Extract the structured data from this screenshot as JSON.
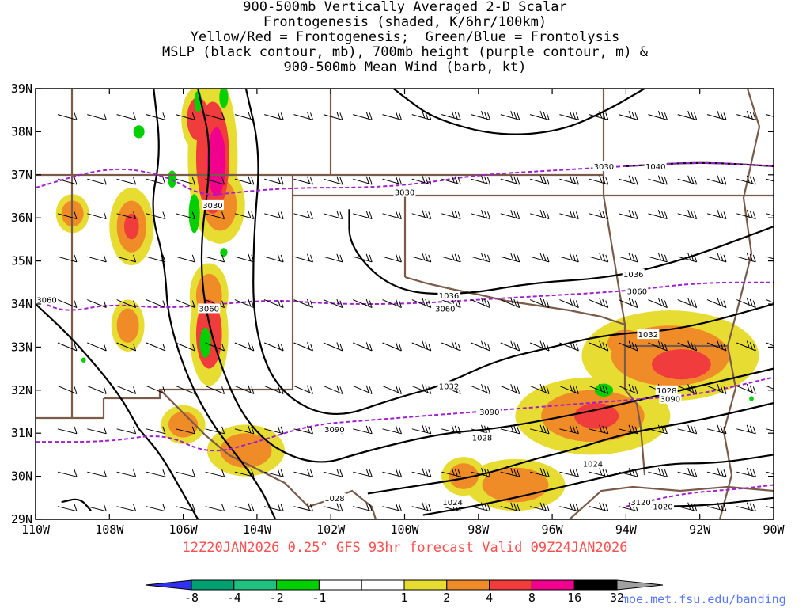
{
  "title_lines": [
    "900-500mb Vertically Averaged 2-D Scalar",
    "Frontogenesis (shaded, K/6hr/100km)",
    "Yellow/Red = Frontogenesis;  Green/Blue = Frontolysis",
    "MSLP (black contour, mb), 700mb height (purple contour, m) &",
    "900-500mb Mean Wind (barb, kt)"
  ],
  "valid_text": "12Z20JAN2026 0.25° GFS 93hr forecast Valid 09Z24JAN2026",
  "credit_text": "moe.met.fsu.edu/banding",
  "chart_data": {
    "type": "heatmap",
    "xlim": [
      -110,
      -90
    ],
    "ylim": [
      29,
      39
    ],
    "x_ticks": [
      {
        "value": -110,
        "label": "110W"
      },
      {
        "value": -108,
        "label": "108W"
      },
      {
        "value": -106,
        "label": "106W"
      },
      {
        "value": -104,
        "label": "104W"
      },
      {
        "value": -102,
        "label": "102W"
      },
      {
        "value": -100,
        "label": "100W"
      },
      {
        "value": -98,
        "label": "98W"
      },
      {
        "value": -96,
        "label": "96W"
      },
      {
        "value": -94,
        "label": "94W"
      },
      {
        "value": -92,
        "label": "92W"
      },
      {
        "value": -90,
        "label": "90W"
      }
    ],
    "y_ticks": [
      {
        "value": 29,
        "label": "29N"
      },
      {
        "value": 30,
        "label": "30N"
      },
      {
        "value": 31,
        "label": "31N"
      },
      {
        "value": 32,
        "label": "32N"
      },
      {
        "value": 33,
        "label": "33N"
      },
      {
        "value": 34,
        "label": "34N"
      },
      {
        "value": 35,
        "label": "35N"
      },
      {
        "value": 36,
        "label": "36N"
      },
      {
        "value": 37,
        "label": "37N"
      },
      {
        "value": 38,
        "label": "38N"
      },
      {
        "value": 39,
        "label": "39N"
      }
    ],
    "colorbar": {
      "colors": [
        "#3030f0",
        "#00a070",
        "#20c080",
        "#00d000",
        "#ffffff",
        "#ffffff",
        "#e6dc32",
        "#f08c28",
        "#f03c3c",
        "#f0008c",
        "#000000",
        "#a0a0a0"
      ],
      "labels": [
        "-8",
        "-4",
        "-2",
        "-1",
        "1",
        "2",
        "4",
        "8",
        "16",
        "32"
      ]
    },
    "fronto_blobs": [
      {
        "lon": -105.2,
        "lat": 37.4,
        "rx": 0.45,
        "ry": 1.3,
        "level": 3
      },
      {
        "lon": -105.1,
        "lat": 37.3,
        "rx": 0.25,
        "ry": 0.8,
        "level": 4
      },
      {
        "lon": -105.6,
        "lat": 38.3,
        "rx": 0.3,
        "ry": 0.5,
        "level": 3
      },
      {
        "lon": -105.0,
        "lat": 36.3,
        "rx": 0.45,
        "ry": 0.6,
        "level": 2
      },
      {
        "lon": -105.3,
        "lat": 33.3,
        "rx": 0.35,
        "ry": 0.8,
        "level": 3
      },
      {
        "lon": -105.3,
        "lat": 34.2,
        "rx": 0.35,
        "ry": 0.5,
        "level": 2
      },
      {
        "lon": -107.4,
        "lat": 35.8,
        "rx": 0.4,
        "ry": 0.6,
        "level": 2
      },
      {
        "lon": -107.4,
        "lat": 35.8,
        "rx": 0.2,
        "ry": 0.3,
        "level": 3
      },
      {
        "lon": -109.0,
        "lat": 36.1,
        "rx": 0.3,
        "ry": 0.3,
        "level": 2
      },
      {
        "lon": -107.5,
        "lat": 33.5,
        "rx": 0.3,
        "ry": 0.4,
        "level": 2
      },
      {
        "lon": -106.0,
        "lat": 31.2,
        "rx": 0.4,
        "ry": 0.3,
        "level": 2
      },
      {
        "lon": -104.3,
        "lat": 30.6,
        "rx": 0.7,
        "ry": 0.4,
        "level": 2
      },
      {
        "lon": -92.8,
        "lat": 32.8,
        "rx": 1.6,
        "ry": 0.7,
        "level": 2
      },
      {
        "lon": -92.5,
        "lat": 32.6,
        "rx": 0.8,
        "ry": 0.35,
        "level": 3
      },
      {
        "lon": -94.9,
        "lat": 31.4,
        "rx": 1.4,
        "ry": 0.6,
        "level": 2
      },
      {
        "lon": -94.8,
        "lat": 31.4,
        "rx": 0.6,
        "ry": 0.3,
        "level": 3
      },
      {
        "lon": -97.0,
        "lat": 29.8,
        "rx": 0.9,
        "ry": 0.4,
        "level": 2
      },
      {
        "lon": -98.4,
        "lat": 30.0,
        "rx": 0.4,
        "ry": 0.3,
        "level": 2
      },
      {
        "lon": -94.0,
        "lat": 33.1,
        "rx": 0.5,
        "ry": 0.3,
        "level": 2
      }
    ],
    "frontolysis_blobs": [
      {
        "lon": -105.7,
        "lat": 36.1,
        "rx": 0.15,
        "ry": 0.45,
        "level": -1
      },
      {
        "lon": -105.4,
        "lat": 33.1,
        "rx": 0.15,
        "ry": 0.35,
        "level": -1
      },
      {
        "lon": -104.9,
        "lat": 38.8,
        "rx": 0.12,
        "ry": 0.25,
        "level": -1
      },
      {
        "lon": -105.6,
        "lat": 38.7,
        "rx": 0.1,
        "ry": 0.25,
        "level": -1
      },
      {
        "lon": -107.2,
        "lat": 38.0,
        "rx": 0.15,
        "ry": 0.15,
        "level": -1
      },
      {
        "lon": -106.3,
        "lat": 36.9,
        "rx": 0.12,
        "ry": 0.2,
        "level": -1
      },
      {
        "lon": -104.9,
        "lat": 35.2,
        "rx": 0.1,
        "ry": 0.1,
        "level": -1
      },
      {
        "lon": -94.6,
        "lat": 32.0,
        "rx": 0.25,
        "ry": 0.15,
        "level": -1
      },
      {
        "lon": -108.7,
        "lat": 32.7,
        "rx": 0.06,
        "ry": 0.06,
        "level": -1
      },
      {
        "lon": -90.6,
        "lat": 31.8,
        "rx": 0.06,
        "ry": 0.06,
        "level": -1
      }
    ],
    "mslp_labels": [
      {
        "lon": -93.2,
        "lat": 37.2,
        "label": "1040"
      },
      {
        "lon": -93.8,
        "lat": 34.7,
        "label": "1036"
      },
      {
        "lon": -98.8,
        "lat": 34.2,
        "label": "1036"
      },
      {
        "lon": -93.4,
        "lat": 33.3,
        "label": "1032"
      },
      {
        "lon": -98.8,
        "lat": 32.1,
        "label": "1032"
      },
      {
        "lon": -92.9,
        "lat": 32.0,
        "label": "1028"
      },
      {
        "lon": -97.9,
        "lat": 30.9,
        "label": "1028"
      },
      {
        "lon": -101.9,
        "lat": 29.5,
        "label": "1028"
      },
      {
        "lon": -94.9,
        "lat": 30.3,
        "label": "1024"
      },
      {
        "lon": -98.7,
        "lat": 29.4,
        "label": "1024"
      },
      {
        "lon": -93.0,
        "lat": 29.3,
        "label": "1020"
      }
    ],
    "height_labels": [
      {
        "lon": -94.6,
        "lat": 37.2,
        "label": "3030"
      },
      {
        "lon": -100.0,
        "lat": 36.6,
        "label": "3030"
      },
      {
        "lon": -105.2,
        "lat": 36.3,
        "label": "3030"
      },
      {
        "lon": -109.7,
        "lat": 34.1,
        "label": "3060"
      },
      {
        "lon": -93.7,
        "lat": 34.3,
        "label": "3060"
      },
      {
        "lon": -98.9,
        "lat": 33.9,
        "label": "3060"
      },
      {
        "lon": -105.3,
        "lat": 33.9,
        "label": "3060"
      },
      {
        "lon": -97.7,
        "lat": 31.5,
        "label": "3090"
      },
      {
        "lon": -92.8,
        "lat": 31.8,
        "label": "3090"
      },
      {
        "lon": -101.9,
        "lat": 31.1,
        "label": "3090"
      },
      {
        "lon": -93.6,
        "lat": 29.4,
        "label": "3120"
      }
    ],
    "mslp_contours": [
      [
        [
          -93.5,
          39
        ],
        [
          -94.5,
          38.5
        ],
        [
          -95.8,
          38.0
        ],
        [
          -97.5,
          37.9
        ],
        [
          -99.2,
          38.3
        ],
        [
          -100.0,
          38.8
        ],
        [
          -100.3,
          39
        ]
      ],
      [
        [
          -94,
          37.2
        ],
        [
          -92,
          37.3
        ],
        [
          -90,
          37.2
        ]
      ],
      [
        [
          -101.5,
          36.2
        ],
        [
          -101.5,
          35.3
        ],
        [
          -100.3,
          34.3
        ],
        [
          -98.5,
          34.2
        ],
        [
          -96.5,
          34.5
        ],
        [
          -94.5,
          34.6
        ],
        [
          -92.5,
          35.0
        ],
        [
          -90,
          35.8
        ]
      ],
      [
        [
          -104.3,
          39
        ],
        [
          -103.9,
          37.5
        ],
        [
          -104.1,
          35.5
        ],
        [
          -104.1,
          33.5
        ],
        [
          -103.5,
          32.0
        ],
        [
          -102.0,
          31.3
        ],
        [
          -100.3,
          31.8
        ],
        [
          -99.0,
          32.1
        ],
        [
          -97.5,
          32.7
        ],
        [
          -96.0,
          33.0
        ],
        [
          -94.5,
          33.3
        ],
        [
          -92.5,
          33.4
        ],
        [
          -90,
          34.0
        ]
      ],
      [
        [
          -105.6,
          39
        ],
        [
          -105.2,
          37.5
        ],
        [
          -105.6,
          35.0
        ],
        [
          -105.2,
          33.0
        ],
        [
          -104.2,
          31.0
        ],
        [
          -102.5,
          30.2
        ],
        [
          -101.0,
          30.6
        ],
        [
          -99.0,
          31.0
        ],
        [
          -97.5,
          31.1
        ],
        [
          -95.0,
          31.5
        ],
        [
          -93.5,
          31.8
        ],
        [
          -92.0,
          32.1
        ],
        [
          -90,
          32.5
        ]
      ],
      [
        [
          -106.8,
          39
        ],
        [
          -106.6,
          37.5
        ],
        [
          -106.9,
          36.2
        ],
        [
          -106.5,
          35.0
        ],
        [
          -106.4,
          33.5
        ],
        [
          -105.5,
          31.5
        ],
        [
          -104.0,
          29.9
        ],
        [
          -103.5,
          29
        ]
      ],
      [
        [
          -107.2,
          31.1
        ],
        [
          -106.6,
          30.5
        ],
        [
          -106.0,
          29.6
        ],
        [
          -105.6,
          29
        ]
      ],
      [
        [
          -108.5,
          29.2
        ],
        [
          -108.8,
          29.5
        ],
        [
          -109.3,
          29.4
        ]
      ],
      [
        [
          -110,
          34.0
        ],
        [
          -109.0,
          33.2
        ],
        [
          -107.8,
          32.0
        ],
        [
          -107.2,
          31.1
        ]
      ],
      [
        [
          -101.0,
          29.6
        ],
        [
          -99.5,
          29.8
        ],
        [
          -98.0,
          30.0
        ],
        [
          -96.5,
          30.4
        ],
        [
          -95.5,
          30.6
        ],
        [
          -94.0,
          31.0
        ],
        [
          -92.0,
          31.3
        ],
        [
          -90,
          31.7
        ]
      ],
      [
        [
          -99.5,
          29.1
        ],
        [
          -97.5,
          29.4
        ],
        [
          -95.0,
          29.9
        ],
        [
          -93.0,
          30.3
        ],
        [
          -91.5,
          30.3
        ],
        [
          -90,
          30.5
        ]
      ],
      [
        [
          -94.0,
          29.3
        ],
        [
          -92.0,
          29.3
        ],
        [
          -90,
          29.5
        ]
      ]
    ],
    "height_contours": [
      [
        [
          -110,
          36.7
        ],
        [
          -108.0,
          37.2
        ],
        [
          -106.5,
          37.0
        ],
        [
          -105.5,
          36.5
        ],
        [
          -104.5,
          36.6
        ],
        [
          -103.0,
          36.7
        ],
        [
          -101.0,
          36.7
        ],
        [
          -99.5,
          36.8
        ],
        [
          -98.0,
          37.0
        ],
        [
          -96.0,
          37.1
        ],
        [
          -94.0,
          37.2
        ],
        [
          -92.0,
          37.3
        ],
        [
          -90,
          37.2
        ]
      ],
      [
        [
          -110,
          34.1
        ],
        [
          -109.2,
          33.8
        ],
        [
          -108.0,
          34.0
        ],
        [
          -106.5,
          33.9
        ],
        [
          -105.0,
          34.0
        ],
        [
          -103.5,
          34.1
        ],
        [
          -102.0,
          34.0
        ],
        [
          -100.0,
          34.0
        ],
        [
          -98.0,
          34.1
        ],
        [
          -96.0,
          34.2
        ],
        [
          -94.0,
          34.3
        ],
        [
          -92.0,
          34.5
        ],
        [
          -90,
          34.5
        ]
      ],
      [
        [
          -110,
          30.8
        ],
        [
          -108.0,
          30.8
        ],
        [
          -106.5,
          31.0
        ],
        [
          -105.3,
          30.5
        ],
        [
          -104.0,
          30.8
        ],
        [
          -102.5,
          31.2
        ],
        [
          -101.0,
          31.3
        ],
        [
          -99.5,
          31.4
        ],
        [
          -98.0,
          31.5
        ],
        [
          -96.5,
          31.6
        ],
        [
          -95.0,
          31.7
        ],
        [
          -93.5,
          31.8
        ],
        [
          -92.0,
          31.9
        ],
        [
          -90,
          32.3
        ]
      ],
      [
        [
          -94.0,
          29.3
        ],
        [
          -92.5,
          29.6
        ],
        [
          -91.0,
          29.7
        ],
        [
          -90,
          29.8
        ]
      ]
    ],
    "barb_rows": [
      38.4,
      36.9,
      36.1,
      35.1,
      34.1,
      33.1,
      32.1,
      31.1,
      30.1,
      29.3
    ],
    "barb_cols": [
      -109.4,
      -108.6,
      -107.8,
      -107.0,
      -106.2,
      -105.4,
      -104.6,
      -103.8,
      -103.0,
      -102.2,
      -101.4,
      -100.6,
      -99.8,
      -99.0,
      -98.2,
      -97.4,
      -96.6,
      -95.8,
      -95.0,
      -94.2,
      -93.4,
      -92.6,
      -91.8,
      -91.0,
      -90.2
    ]
  }
}
